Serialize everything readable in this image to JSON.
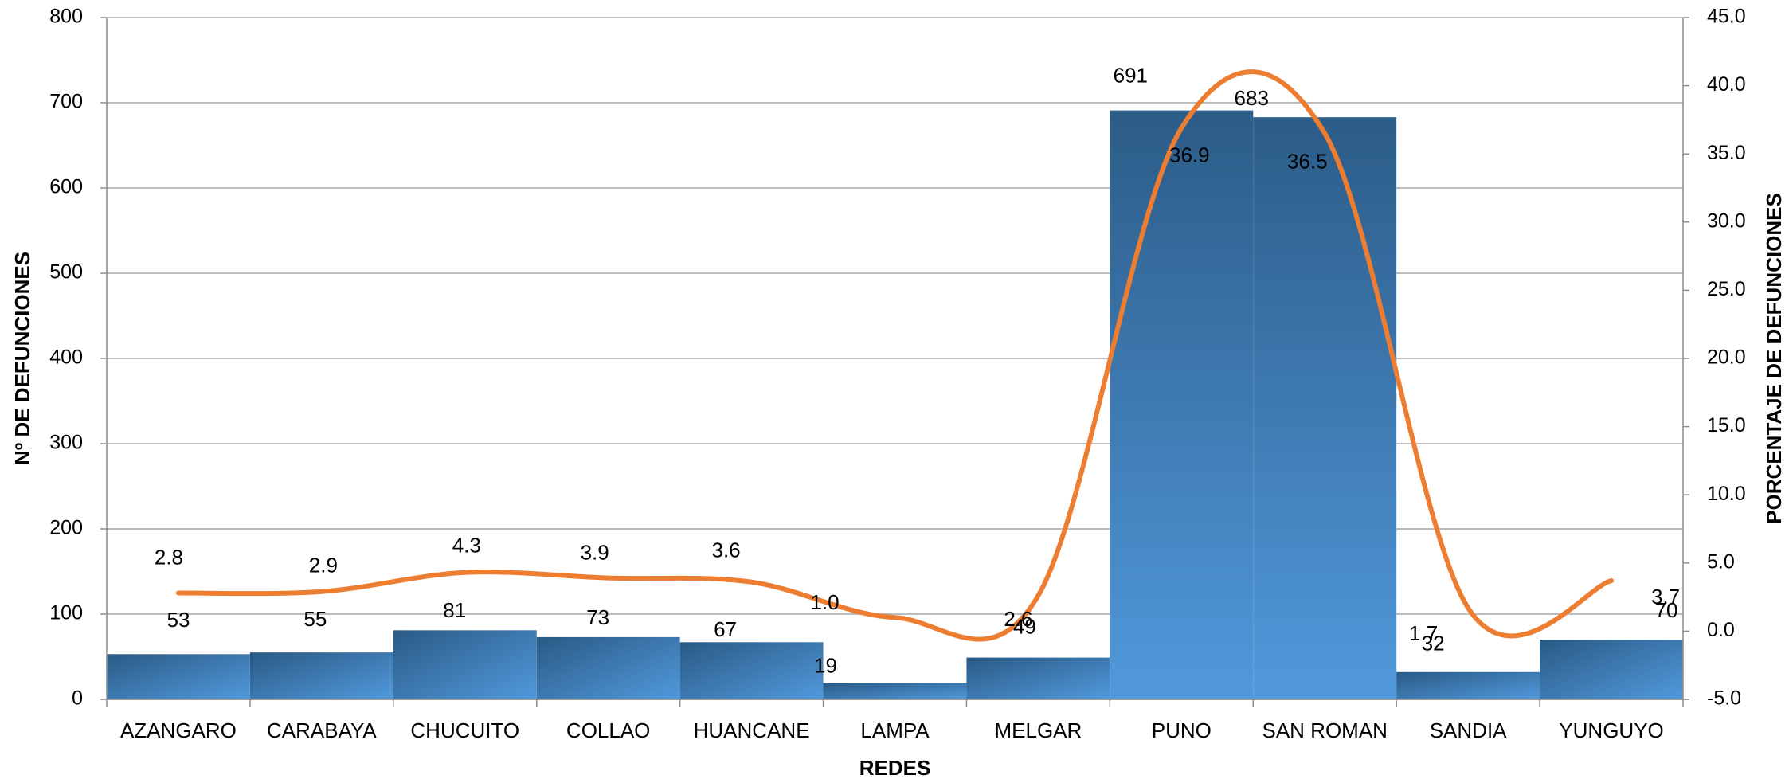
{
  "chart_data": {
    "type": "bar",
    "categories": [
      "AZANGARO",
      "CARABAYA",
      "CHUCUITO",
      "COLLAO",
      "HUANCANE",
      "LAMPA",
      "MELGAR",
      "PUNO",
      "SAN ROMAN",
      "SANDIA",
      "YUNGUYO"
    ],
    "series": [
      {
        "type": "bar",
        "axis": "left",
        "values": [
          53,
          55,
          81,
          73,
          67,
          19,
          49,
          691,
          683,
          32,
          70
        ]
      },
      {
        "type": "line",
        "axis": "right",
        "smooth": true,
        "values": [
          2.8,
          2.9,
          4.3,
          3.9,
          3.6,
          1.0,
          2.6,
          36.9,
          36.5,
          1.7,
          3.7
        ]
      }
    ],
    "xlabel": "REDES",
    "ylabel": "Nº DE DEFUNCIONES",
    "y2label": "PORCENTAJE DE DEFUNCIONES",
    "ylim": [
      0,
      800
    ],
    "y2lim": [
      -5.0,
      45.0
    ],
    "yticks": [
      "0",
      "100",
      "200",
      "300",
      "400",
      "500",
      "600",
      "700",
      "800"
    ],
    "y2ticks": [
      "-5.0",
      "0.0",
      "5.0",
      "10.0",
      "15.0",
      "20.0",
      "25.0",
      "30.0",
      "35.0",
      "40.0",
      "45.0"
    ],
    "grid": true,
    "colors": {
      "bar_dark": "#2a5a85",
      "bar_light": "#5199dc",
      "line": "#ed7d31",
      "grid": "#a6a6a6"
    }
  }
}
